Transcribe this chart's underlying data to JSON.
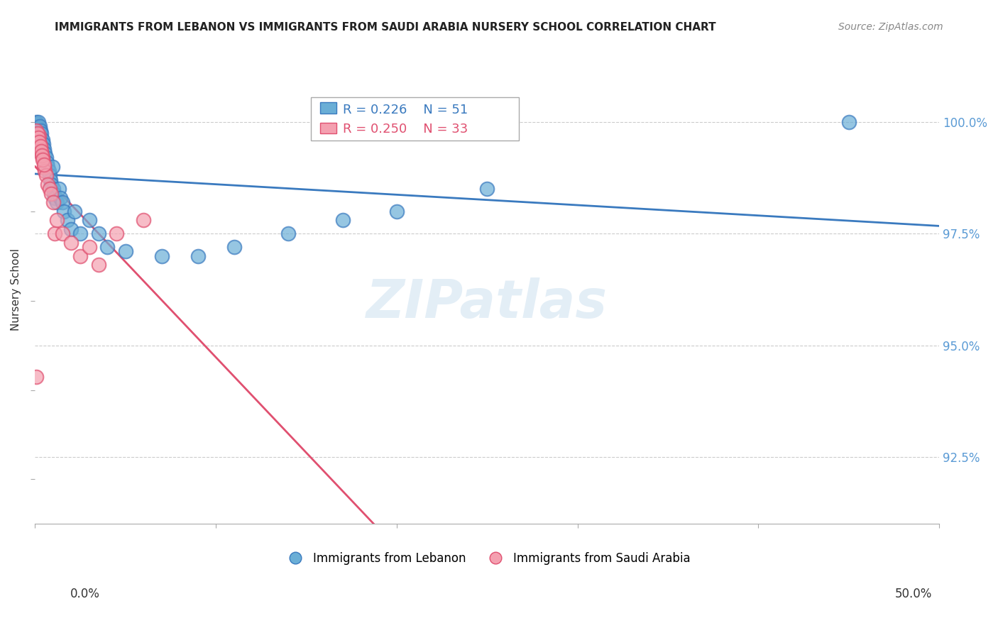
{
  "title": "IMMIGRANTS FROM LEBANON VS IMMIGRANTS FROM SAUDI ARABIA NURSERY SCHOOL CORRELATION CHART",
  "source": "Source: ZipAtlas.com",
  "ylabel": "Nursery School",
  "yticks": [
    92.5,
    95.0,
    97.5,
    100.0
  ],
  "ytick_labels": [
    "92.5%",
    "95.0%",
    "97.5%",
    "100.0%"
  ],
  "xlim": [
    0.0,
    50.0
  ],
  "ylim": [
    91.0,
    101.5
  ],
  "legend_blue_r": "R = 0.226",
  "legend_blue_n": "N = 51",
  "legend_pink_r": "R = 0.250",
  "legend_pink_n": "N = 33",
  "legend_label_blue": "Immigrants from Lebanon",
  "legend_label_pink": "Immigrants from Saudi Arabia",
  "color_blue": "#6aaed6",
  "color_pink": "#f4a0b0",
  "color_line_blue": "#3a7abf",
  "color_line_pink": "#e05070",
  "color_text_right": "#5b9bd5",
  "blue_x": [
    0.05,
    0.08,
    0.1,
    0.12,
    0.14,
    0.15,
    0.18,
    0.2,
    0.22,
    0.25,
    0.28,
    0.3,
    0.32,
    0.35,
    0.38,
    0.4,
    0.45,
    0.5,
    0.55,
    0.6,
    0.65,
    0.7,
    0.75,
    0.8,
    0.85,
    0.9,
    0.95,
    1.0,
    1.05,
    1.1,
    1.2,
    1.3,
    1.4,
    1.5,
    1.6,
    1.8,
    2.0,
    2.2,
    2.5,
    3.0,
    3.5,
    4.0,
    5.0,
    7.0,
    9.0,
    11.0,
    14.0,
    17.0,
    20.0,
    25.0,
    45.0
  ],
  "blue_y": [
    99.9,
    100.0,
    99.85,
    99.95,
    99.8,
    99.9,
    100.0,
    99.75,
    99.85,
    99.9,
    99.7,
    99.8,
    99.6,
    99.75,
    99.5,
    99.6,
    99.5,
    99.4,
    99.3,
    99.2,
    99.1,
    99.0,
    98.9,
    98.8,
    98.7,
    98.6,
    99.0,
    98.5,
    98.4,
    98.3,
    98.2,
    98.5,
    98.3,
    98.2,
    98.0,
    97.8,
    97.6,
    98.0,
    97.5,
    97.8,
    97.5,
    97.2,
    97.1,
    97.0,
    97.0,
    97.2,
    97.5,
    97.8,
    98.0,
    98.5,
    100.0
  ],
  "pink_x": [
    0.05,
    0.1,
    0.15,
    0.2,
    0.25,
    0.3,
    0.35,
    0.4,
    0.5,
    0.55,
    0.6,
    0.7,
    0.8,
    0.9,
    1.0,
    1.1,
    1.2,
    1.5,
    2.0,
    2.5,
    3.0,
    3.5,
    4.5,
    6.0,
    0.08,
    0.12,
    0.18,
    0.22,
    0.28,
    0.32,
    0.38,
    0.42,
    0.48
  ],
  "pink_y": [
    94.3,
    99.5,
    99.6,
    99.7,
    99.5,
    99.4,
    99.3,
    99.2,
    99.0,
    98.9,
    98.8,
    98.6,
    98.5,
    98.4,
    98.2,
    97.5,
    97.8,
    97.5,
    97.3,
    97.0,
    97.2,
    96.8,
    97.5,
    97.8,
    99.8,
    99.75,
    99.65,
    99.55,
    99.45,
    99.35,
    99.25,
    99.15,
    99.05
  ]
}
